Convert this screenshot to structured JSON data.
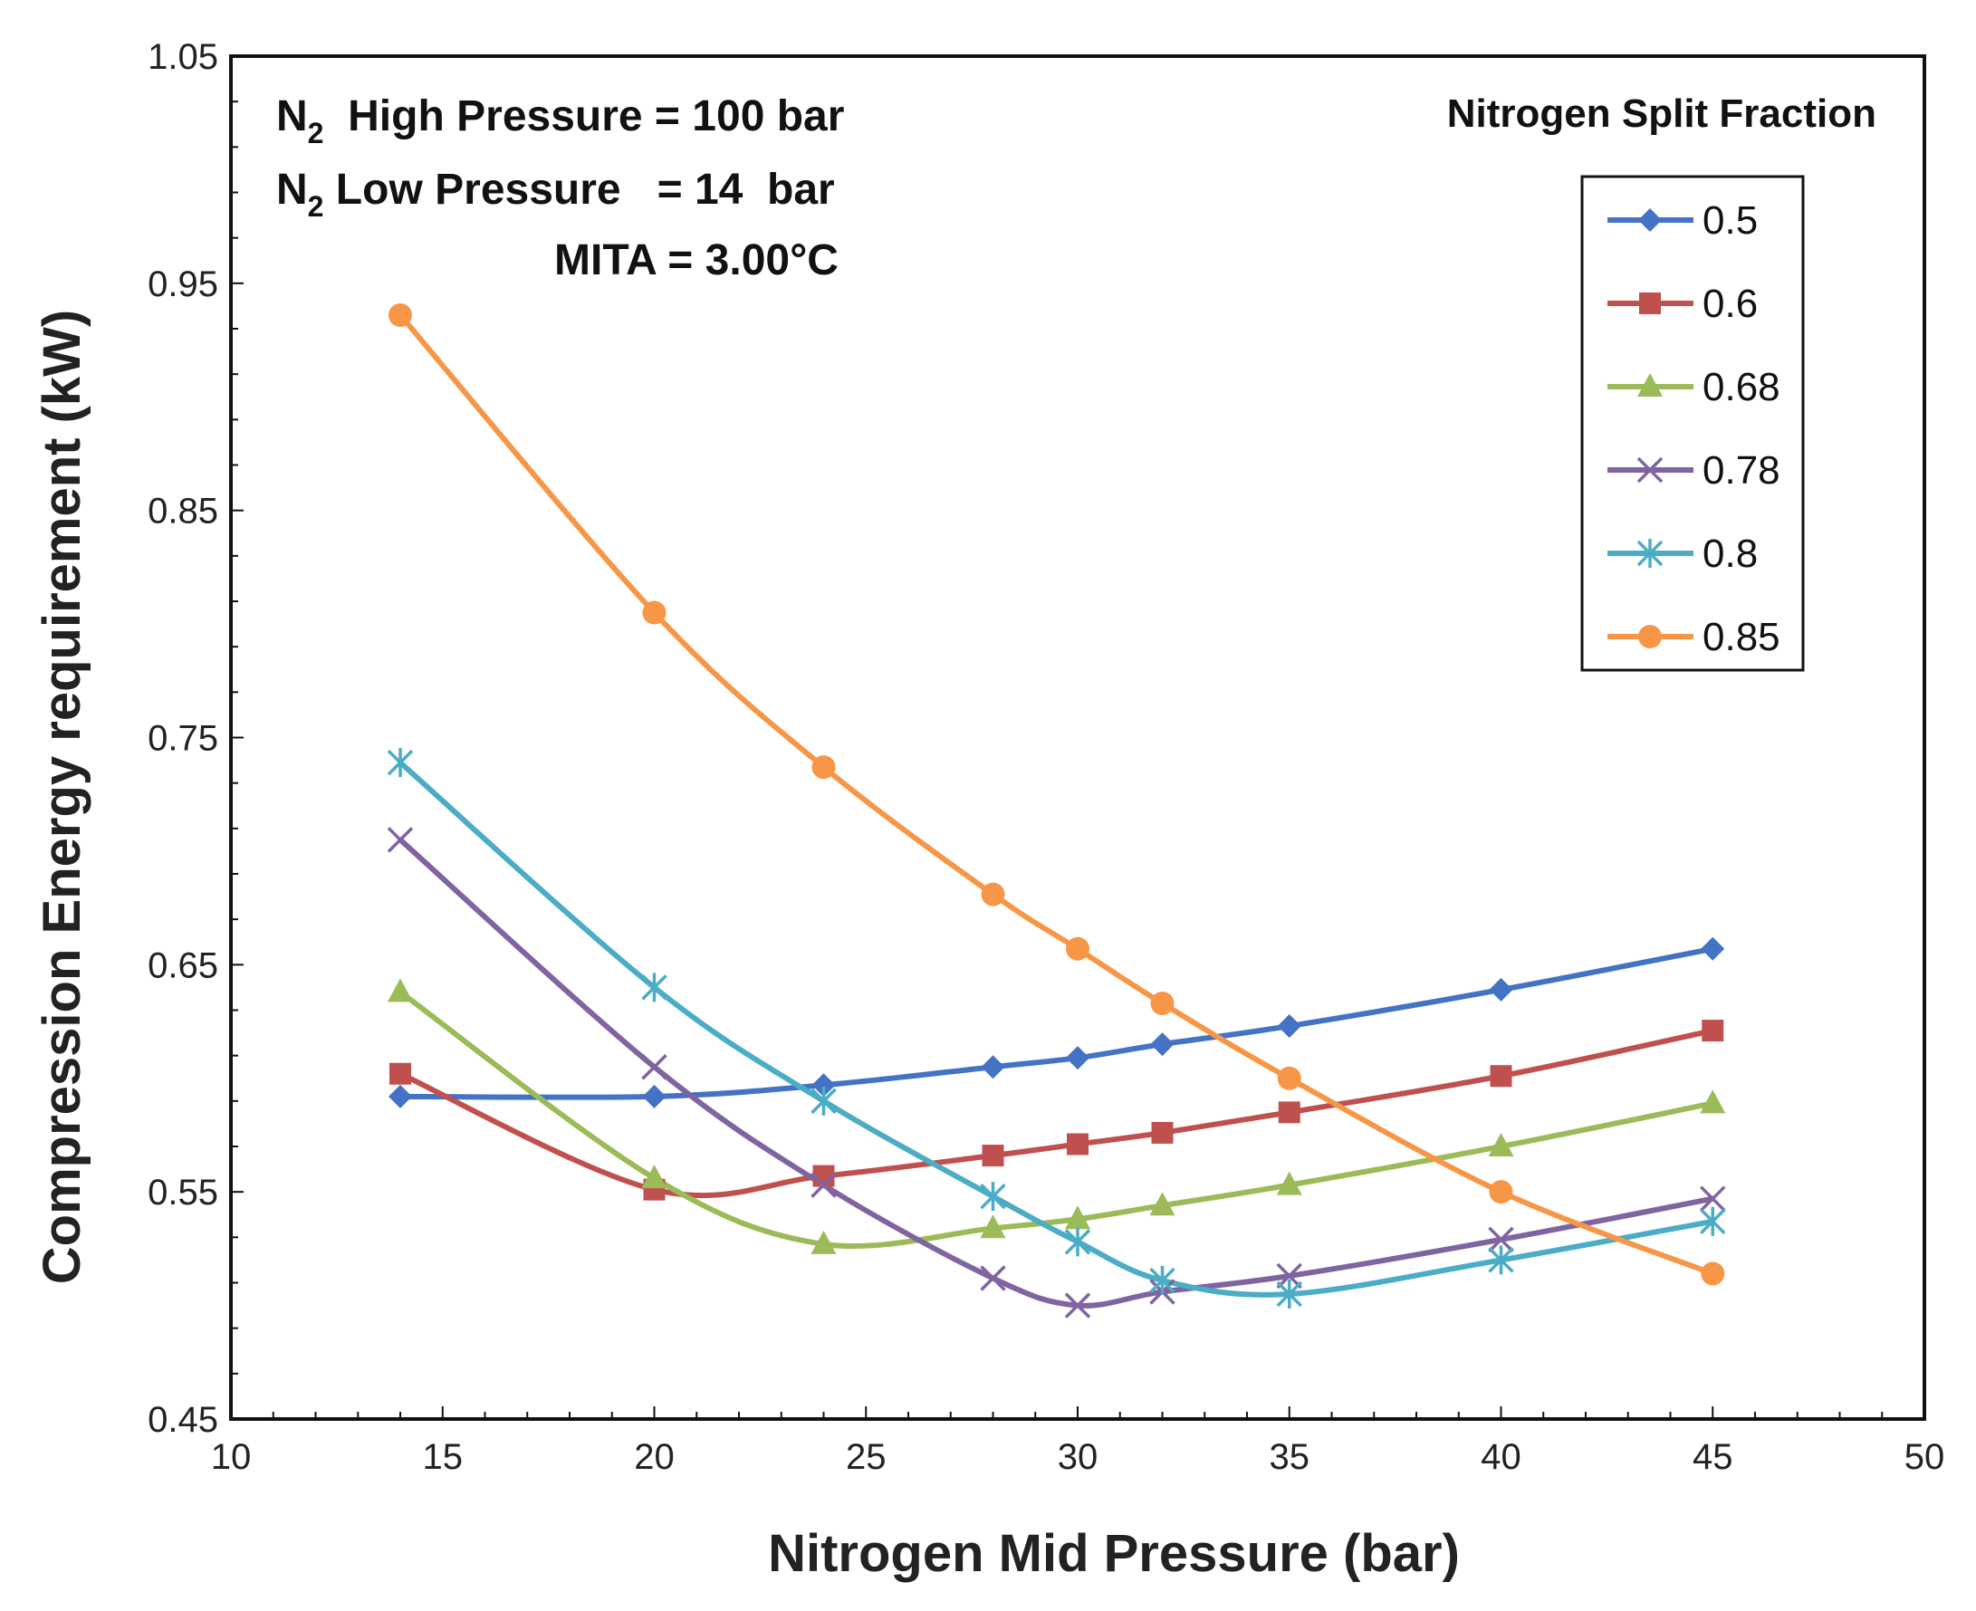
{
  "chart_data": {
    "type": "line",
    "xlabel": "Nitrogen Mid Pressure (bar)",
    "ylabel": "Compression Energy requirement  (kW)",
    "xlim": [
      10,
      50
    ],
    "ylim": [
      0.45,
      1.05
    ],
    "x_ticks": [
      "10",
      "15",
      "20",
      "25",
      "30",
      "35",
      "40",
      "45",
      "50"
    ],
    "y_ticks": [
      "0.45",
      "0.55",
      "0.65",
      "0.75",
      "0.85",
      "0.95",
      "1.05"
    ],
    "legend_title": "Nitrogen Split Fraction",
    "legend_position": "top-right",
    "annotations": {
      "line1_prefix": "N",
      "line1_sub": "2",
      "line1_text": "  High Pressure = 100 bar",
      "line2_prefix": "N",
      "line2_sub": "2",
      "line2_text": " Low Pressure   = 14  bar",
      "line3_text": "MITA = 3.00°C"
    },
    "x": [
      14,
      20,
      24,
      28,
      30,
      32,
      35,
      40,
      45
    ],
    "series": [
      {
        "name": "0.5",
        "color": "#4472C4",
        "marker": "diamond",
        "values": [
          0.592,
          0.592,
          0.597,
          0.605,
          0.609,
          0.615,
          0.623,
          0.639,
          0.657
        ]
      },
      {
        "name": "0.6",
        "color": "#C0504D",
        "marker": "square",
        "values": [
          0.602,
          0.551,
          0.557,
          0.566,
          0.571,
          0.576,
          0.585,
          0.601,
          0.621
        ]
      },
      {
        "name": "0.68",
        "color": "#9BBB59",
        "marker": "triangle",
        "values": [
          0.638,
          0.556,
          0.527,
          0.534,
          0.538,
          0.544,
          0.553,
          0.57,
          0.589
        ]
      },
      {
        "name": "0.78",
        "color": "#8064A2",
        "marker": "x",
        "values": [
          0.705,
          0.605,
          0.553,
          0.512,
          0.5,
          0.506,
          0.513,
          0.529,
          0.547
        ]
      },
      {
        "name": "0.8",
        "color": "#4BACC6",
        "marker": "star",
        "values": [
          0.739,
          0.64,
          0.59,
          0.548,
          0.528,
          0.511,
          0.505,
          0.52,
          0.537
        ]
      },
      {
        "name": "0.85",
        "color": "#F79646",
        "marker": "circle",
        "values": [
          0.936,
          0.805,
          0.737,
          0.681,
          0.657,
          0.633,
          0.6,
          0.55,
          0.514
        ]
      }
    ]
  }
}
